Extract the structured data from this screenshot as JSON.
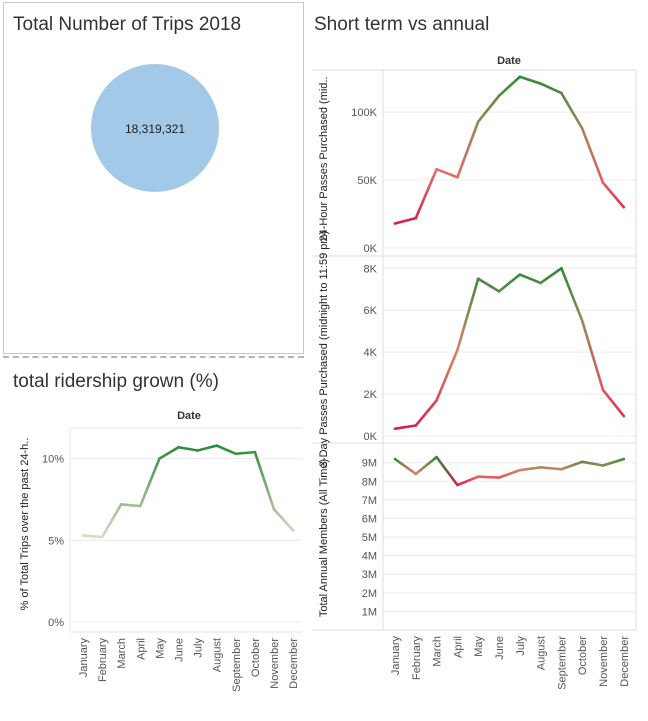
{
  "total_trips": {
    "title": "Total Number of Trips 2018",
    "value": "18,319,321",
    "color": "#a3c9e8"
  },
  "short_vs_annual": {
    "title": "Short term vs annual"
  },
  "ridership": {
    "title": "total ridership grown (%)"
  },
  "months": [
    "January",
    "February",
    "March",
    "April",
    "May",
    "June",
    "July",
    "August",
    "September",
    "October",
    "November",
    "December"
  ],
  "colors": {
    "low": "#d6204a",
    "mid": "#e8846f",
    "high": "#2e8a3a",
    "pale": "#e0d7c2"
  },
  "chart_data": [
    {
      "type": "line",
      "title": "total ridership grown (%)",
      "xlabel": "Date",
      "ylabel": "% of Total Trips over the past 24-h..",
      "categories": [
        "January",
        "February",
        "March",
        "April",
        "May",
        "June",
        "July",
        "August",
        "September",
        "October",
        "November",
        "December"
      ],
      "values": [
        5.3,
        5.2,
        7.2,
        7.1,
        10.0,
        10.7,
        10.5,
        10.8,
        10.3,
        10.4,
        6.9,
        5.6
      ],
      "ylim": [
        0,
        12
      ],
      "yticks": [
        "0%",
        "5%",
        "10%"
      ],
      "ytick_values": [
        0,
        5,
        10
      ]
    },
    {
      "type": "line",
      "title": "Short term vs annual",
      "xlabel": "Date",
      "ylabel": "24-Hour Passes Purchased (mid..",
      "categories": [
        "January",
        "February",
        "March",
        "April",
        "May",
        "June",
        "July",
        "August",
        "September",
        "October",
        "November",
        "December"
      ],
      "values": [
        18000,
        22000,
        58000,
        52000,
        93000,
        112000,
        126000,
        121000,
        114000,
        88000,
        48000,
        30000
      ],
      "ylim": [
        0,
        131000
      ],
      "yticks": [
        "0K",
        "50K",
        "100K"
      ],
      "ytick_values": [
        0,
        50000,
        100000
      ]
    },
    {
      "type": "line",
      "xlabel": "",
      "ylabel": "3-Day Passes Purchased (midnight to 11:59 pm)",
      "categories": [
        "January",
        "February",
        "March",
        "April",
        "May",
        "June",
        "July",
        "August",
        "September",
        "October",
        "November",
        "December"
      ],
      "values": [
        350,
        500,
        1700,
        4100,
        7500,
        6900,
        7700,
        7300,
        8000,
        5500,
        2200,
        950
      ],
      "ylim": [
        0,
        8300
      ],
      "yticks": [
        "0K",
        "2K",
        "4K",
        "6K",
        "8K"
      ],
      "ytick_values": [
        0,
        2000,
        4000,
        6000,
        8000
      ]
    },
    {
      "type": "line",
      "xlabel": "",
      "ylabel": "Total Annual Members (All Time)",
      "categories": [
        "January",
        "February",
        "March",
        "April",
        "May",
        "June",
        "July",
        "August",
        "September",
        "October",
        "November",
        "December"
      ],
      "values": [
        9200000,
        8400000,
        9300000,
        7800000,
        8250000,
        8200000,
        8600000,
        8750000,
        8650000,
        9050000,
        8850000,
        9200000
      ],
      "ylim": [
        0,
        9900000
      ],
      "yticks": [
        "1M",
        "2M",
        "3M",
        "4M",
        "5M",
        "6M",
        "7M",
        "8M",
        "9M"
      ],
      "ytick_values": [
        1000000,
        2000000,
        3000000,
        4000000,
        5000000,
        6000000,
        7000000,
        8000000,
        9000000
      ]
    }
  ]
}
